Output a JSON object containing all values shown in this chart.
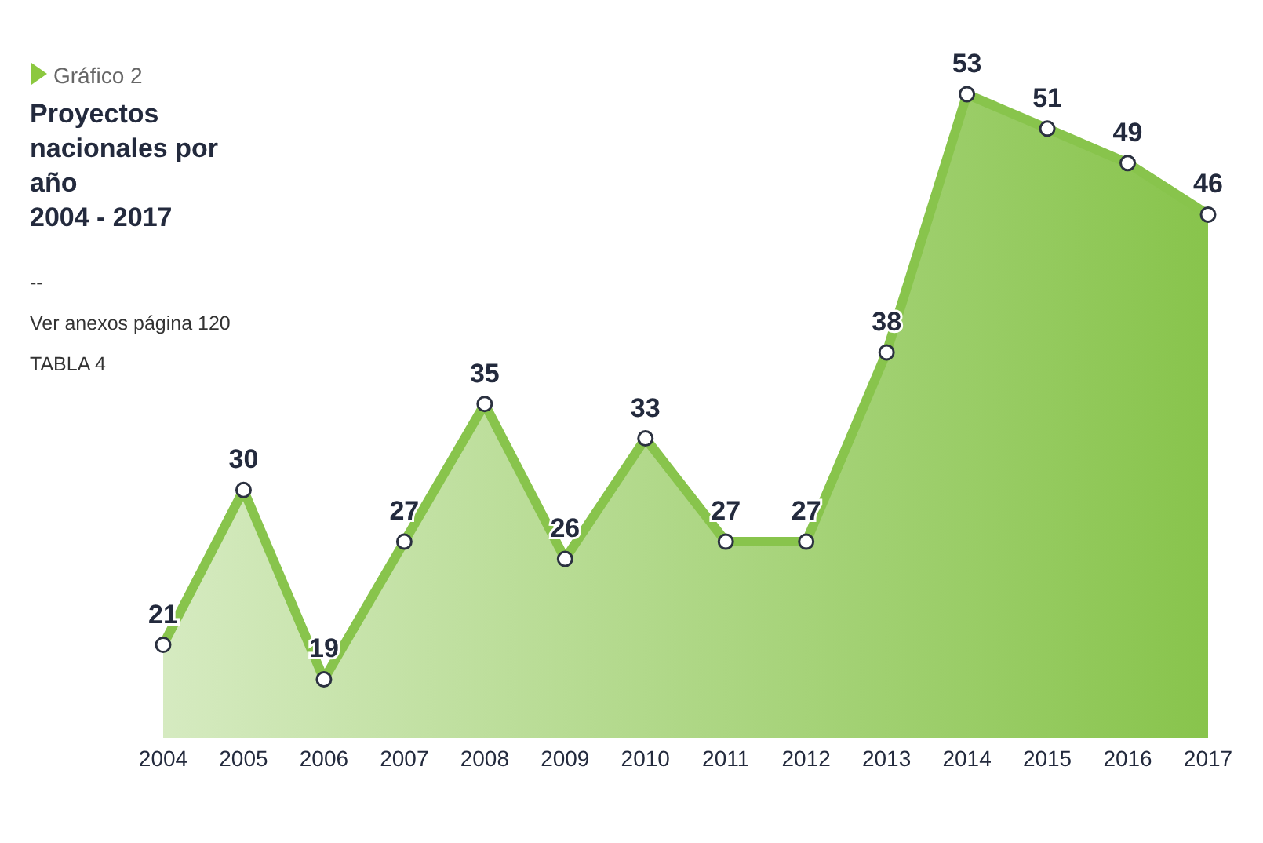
{
  "chart_data": {
    "type": "area",
    "title": "Proyectos nacionales por año",
    "subtitle": "2004 - 2017",
    "annotations": [
      "Gráfico 2",
      "--",
      "Ver anexos página 120",
      "TABLA 4"
    ],
    "categories": [
      "2004",
      "2005",
      "2006",
      "2007",
      "2008",
      "2009",
      "2010",
      "2011",
      "2012",
      "2013",
      "2014",
      "2015",
      "2016",
      "2017"
    ],
    "series": [
      {
        "color": "#88c44c",
        "values": [
          21,
          30,
          19,
          27,
          35,
          26,
          33,
          27,
          27,
          38,
          53,
          51,
          49,
          46
        ]
      }
    ],
    "data_labels": true,
    "marker": "circle",
    "line_style": "solid"
  }
}
